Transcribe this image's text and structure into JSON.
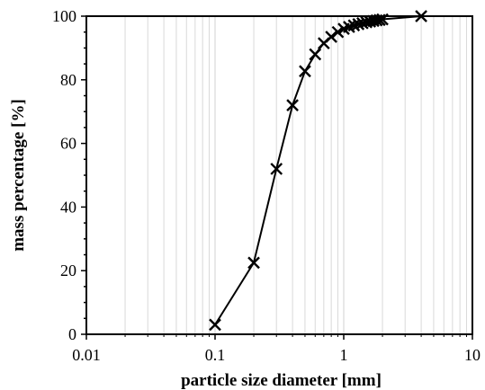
{
  "chart_data": {
    "type": "line",
    "title": "",
    "xlabel": "particle size diameter [mm]",
    "ylabel": "mass percentage [%]",
    "x_scale": "log",
    "xlim": [
      0.01,
      10
    ],
    "ylim": [
      0,
      100
    ],
    "x_ticks": [
      "0.01",
      "0.1",
      "1",
      "10"
    ],
    "y_ticks": [
      "0",
      "20",
      "40",
      "60",
      "80",
      "100"
    ],
    "grid": {
      "x_major": true,
      "x_minor": true,
      "y": false
    },
    "marker": "x",
    "line_color": "#000000",
    "grid_color": "#d9d9d9",
    "series": [
      {
        "x": [
          0.1,
          0.2,
          0.3,
          0.4,
          0.5,
          0.6,
          0.7,
          0.8,
          0.9,
          1.0,
          1.1,
          1.2,
          1.3,
          1.4,
          1.5,
          1.6,
          1.7,
          1.8,
          1.9,
          2.0,
          4.0
        ],
        "y": [
          3,
          22.5,
          52,
          72,
          82.7,
          88,
          91.5,
          93.5,
          95,
          96,
          96.6,
          97.1,
          97.5,
          97.8,
          98.1,
          98.3,
          98.5,
          98.7,
          98.8,
          99,
          100
        ]
      }
    ]
  }
}
